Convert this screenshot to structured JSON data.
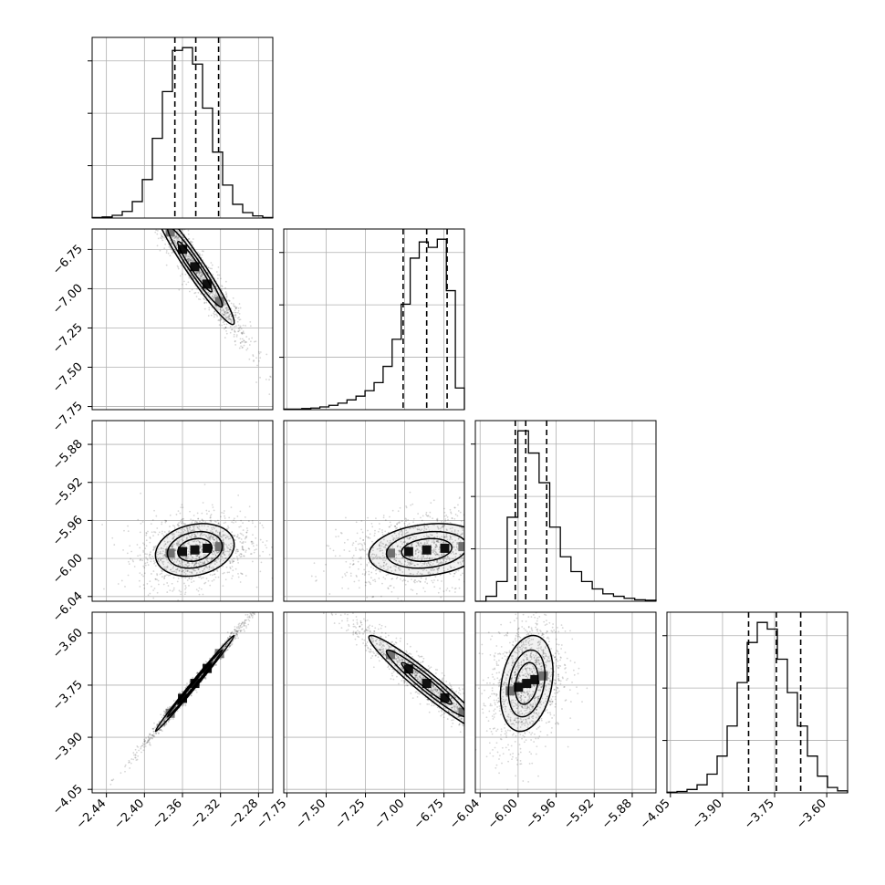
{
  "chart_data": {
    "type": "corner",
    "n_params": 4,
    "grid": true,
    "colors": {
      "line": "#000000",
      "grid": "#b0b0b0",
      "scatter": "#000000"
    },
    "params": [
      {
        "ticks": [
          "−2.44",
          "−2.40",
          "−2.36",
          "−2.32",
          "−2.28"
        ],
        "tick_values": [
          -2.44,
          -2.4,
          -2.36,
          -2.32,
          -2.28
        ],
        "range": [
          -2.455,
          -2.265
        ],
        "quantiles": [
          -2.368,
          -2.346,
          -2.322
        ]
      },
      {
        "ticks": [
          "−7.75",
          "−7.50",
          "−7.25",
          "−7.00",
          "−6.75"
        ],
        "tick_values": [
          -7.75,
          -7.5,
          -7.25,
          -7.0,
          -6.75
        ],
        "range": [
          -7.77,
          -6.62
        ],
        "quantiles": [
          -7.01,
          -6.86,
          -6.73
        ]
      },
      {
        "ticks": [
          "−6.04",
          "−6.00",
          "−5.96",
          "−5.92",
          "−5.88"
        ],
        "tick_values": [
          -6.04,
          -6.0,
          -5.96,
          -5.92,
          -5.88
        ],
        "range": [
          -6.045,
          -5.855
        ],
        "quantiles": [
          -6.003,
          -5.992,
          -5.97
        ]
      },
      {
        "ticks": [
          "−4.05",
          "−3.90",
          "−3.75",
          "−3.60"
        ],
        "tick_values": [
          -4.05,
          -3.9,
          -3.75,
          -3.6
        ],
        "range": [
          -4.06,
          -3.54
        ],
        "quantiles": [
          -3.825,
          -3.745,
          -3.675
        ]
      }
    ],
    "histograms": [
      {
        "param": 0,
        "counts": [
          1,
          2,
          5,
          12,
          30,
          70,
          145,
          230,
          305,
          310,
          280,
          200,
          120,
          60,
          25,
          10,
          4,
          1
        ]
      },
      {
        "param": 1,
        "counts": [
          1,
          1,
          2,
          3,
          5,
          8,
          12,
          18,
          25,
          35,
          50,
          80,
          130,
          195,
          280,
          310,
          300,
          315,
          220,
          40
        ]
      },
      {
        "param": 2,
        "counts": [
          0,
          10,
          40,
          170,
          345,
          300,
          240,
          150,
          90,
          60,
          40,
          25,
          15,
          10,
          6,
          3,
          2
        ]
      },
      {
        "param": 3,
        "counts": [
          1,
          2,
          5,
          12,
          28,
          55,
          100,
          165,
          225,
          255,
          245,
          200,
          150,
          100,
          55,
          25,
          8,
          3
        ]
      }
    ],
    "pairs": [
      {
        "x": 0,
        "y": 1,
        "center": [
          -2.347,
          -6.86
        ],
        "sx": 0.018,
        "sy": 0.16,
        "rho": -0.96
      },
      {
        "x": 0,
        "y": 2,
        "center": [
          -2.347,
          -5.991
        ],
        "sx": 0.018,
        "sy": 0.012,
        "rho": 0.2
      },
      {
        "x": 1,
        "y": 2,
        "center": [
          -6.86,
          -5.991
        ],
        "sx": 0.16,
        "sy": 0.012,
        "rho": 0.2
      },
      {
        "x": 0,
        "y": 3,
        "center": [
          -2.347,
          -3.745
        ],
        "sx": 0.018,
        "sy": 0.06,
        "rho": 0.995
      },
      {
        "x": 1,
        "y": 3,
        "center": [
          -6.86,
          -3.745
        ],
        "sx": 0.16,
        "sy": 0.06,
        "rho": -0.96
      },
      {
        "x": 2,
        "y": 3,
        "center": [
          -5.991,
          -3.745
        ],
        "sx": 0.012,
        "sy": 0.06,
        "rho": 0.25
      }
    ]
  }
}
